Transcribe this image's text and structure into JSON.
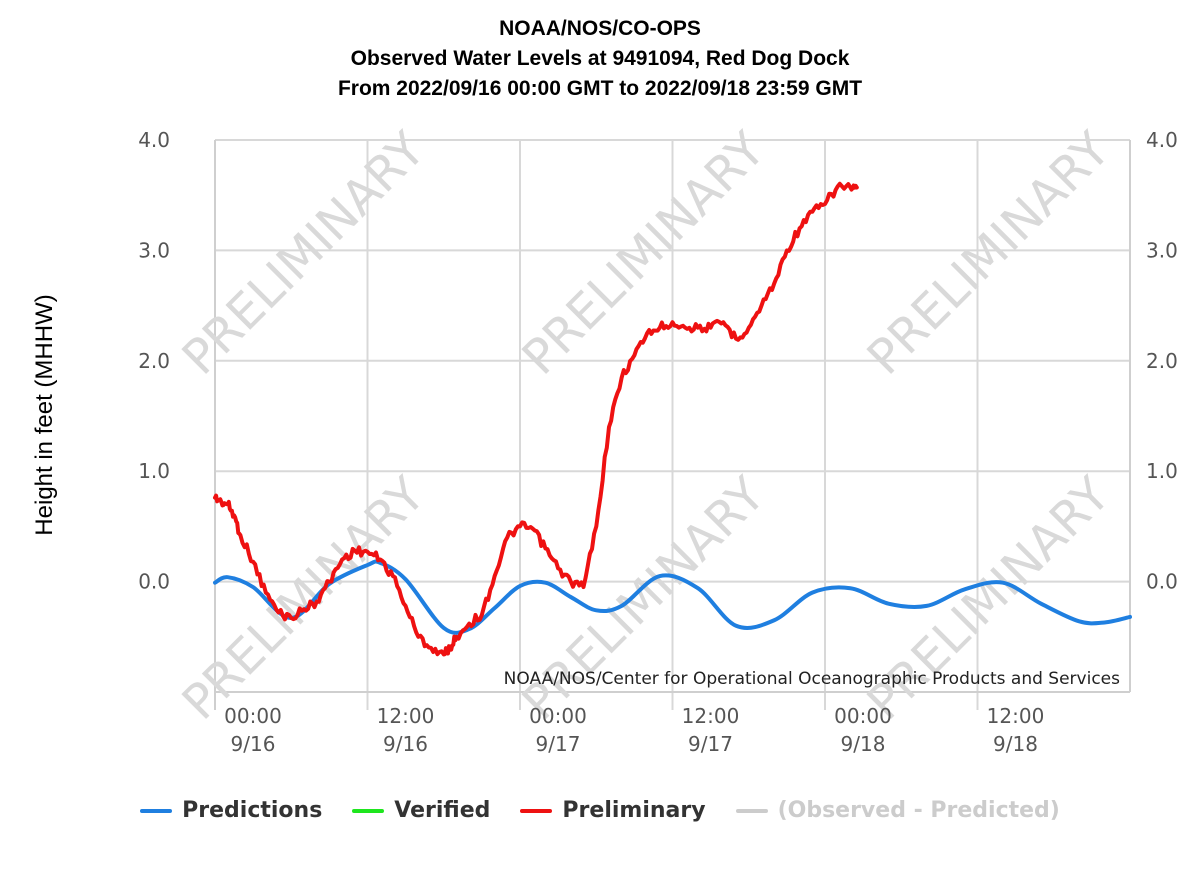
{
  "title_lines": [
    "NOAA/NOS/CO-OPS",
    "Observed Water Levels at 9491094, Red Dog Dock",
    "From 2022/09/16 00:00 GMT to 2022/09/18 23:59 GMT"
  ],
  "watermark": "PRELIMINARY",
  "credit": "NOAA/NOS/Center for Operational Oceanographic Products and Services",
  "chart_data": {
    "type": "line",
    "ylabel": "Height in feet (MHHW)",
    "xlabel": "",
    "xlim": [
      "2022-09-16 00:00",
      "2022-09-19 00:00"
    ],
    "ylim": [
      -1.0,
      4.0
    ],
    "y_ticks": [
      "4.0",
      "3.0",
      "2.0",
      "1.0",
      "0.0"
    ],
    "y_tick_values": [
      4.0,
      3.0,
      2.0,
      1.0,
      0.0
    ],
    "x_ticks": [
      {
        "time": "2022-09-16 00:00",
        "line1": "00:00",
        "line2": "9/16"
      },
      {
        "time": "2022-09-16 12:00",
        "line1": "12:00",
        "line2": "9/16"
      },
      {
        "time": "2022-09-17 00:00",
        "line1": "00:00",
        "line2": "9/17"
      },
      {
        "time": "2022-09-17 12:00",
        "line1": "12:00",
        "line2": "9/17"
      },
      {
        "time": "2022-09-18 00:00",
        "line1": "00:00",
        "line2": "9/18"
      },
      {
        "time": "2022-09-18 12:00",
        "line1": "12:00",
        "line2": "9/18"
      }
    ],
    "grid": true,
    "legend_position": "bottom-center",
    "series": [
      {
        "name": "Predictions",
        "color": "#1f7fe0",
        "x": [
          "2022-09-16 00:00",
          "2022-09-16 01:00",
          "2022-09-16 03:00",
          "2022-09-16 06:00",
          "2022-09-16 09:00",
          "2022-09-16 12:00",
          "2022-09-16 13:00",
          "2022-09-16 15:00",
          "2022-09-16 18:00",
          "2022-09-16 20:00",
          "2022-09-16 22:00",
          "2022-09-17 00:00",
          "2022-09-17 02:00",
          "2022-09-17 04:00",
          "2022-09-17 06:00",
          "2022-09-17 08:00",
          "2022-09-17 11:00",
          "2022-09-17 14:00",
          "2022-09-17 17:00",
          "2022-09-17 20:00",
          "2022-09-17 23:00",
          "2022-09-18 02:00",
          "2022-09-18 05:00",
          "2022-09-18 08:00",
          "2022-09-18 11:00",
          "2022-09-18 14:00",
          "2022-09-18 17:00",
          "2022-09-18 20:00",
          "2022-09-18 22:00",
          "2022-09-19 00:00"
        ],
        "y": [
          -0.01,
          0.04,
          -0.05,
          -0.33,
          -0.02,
          0.15,
          0.17,
          0.02,
          -0.42,
          -0.43,
          -0.24,
          -0.04,
          -0.01,
          -0.14,
          -0.26,
          -0.22,
          0.05,
          -0.06,
          -0.4,
          -0.35,
          -0.1,
          -0.06,
          -0.2,
          -0.22,
          -0.07,
          -0.01,
          -0.2,
          -0.36,
          -0.37,
          -0.32
        ]
      },
      {
        "name": "Verified",
        "color": "#1ee61e",
        "x": [],
        "y": []
      },
      {
        "name": "Preliminary",
        "color": "#ee1111",
        "x": [
          "2022-09-16 00:00",
          "2022-09-16 00:30",
          "2022-09-16 01:00",
          "2022-09-16 01:30",
          "2022-09-16 02:00",
          "2022-09-16 03:00",
          "2022-09-16 04:00",
          "2022-09-16 05:00",
          "2022-09-16 06:00",
          "2022-09-16 07:00",
          "2022-09-16 08:00",
          "2022-09-16 09:00",
          "2022-09-16 10:00",
          "2022-09-16 11:00",
          "2022-09-16 12:00",
          "2022-09-16 13:00",
          "2022-09-16 14:00",
          "2022-09-16 15:00",
          "2022-09-16 16:00",
          "2022-09-16 17:00",
          "2022-09-16 18:00",
          "2022-09-16 18:30",
          "2022-09-16 19:00",
          "2022-09-16 20:00",
          "2022-09-16 21:00",
          "2022-09-16 22:00",
          "2022-09-16 23:00",
          "2022-09-17 00:00",
          "2022-09-17 01:00",
          "2022-09-17 02:00",
          "2022-09-17 03:00",
          "2022-09-17 04:00",
          "2022-09-17 05:00",
          "2022-09-17 06:00",
          "2022-09-17 07:00",
          "2022-09-17 08:00",
          "2022-09-17 09:00",
          "2022-09-17 10:00",
          "2022-09-17 11:00",
          "2022-09-17 12:00",
          "2022-09-17 13:00",
          "2022-09-17 14:00",
          "2022-09-17 15:00",
          "2022-09-17 16:00",
          "2022-09-17 17:00",
          "2022-09-17 18:00",
          "2022-09-17 19:00",
          "2022-09-17 20:00",
          "2022-09-17 21:00",
          "2022-09-17 22:00",
          "2022-09-17 23:00",
          "2022-09-18 00:00",
          "2022-09-18 01:00",
          "2022-09-18 02:00",
          "2022-09-18 02:30"
        ],
        "y": [
          0.76,
          0.72,
          0.7,
          0.6,
          0.42,
          0.18,
          -0.1,
          -0.28,
          -0.33,
          -0.25,
          -0.18,
          0.0,
          0.2,
          0.28,
          0.27,
          0.2,
          0.05,
          -0.22,
          -0.5,
          -0.6,
          -0.66,
          -0.6,
          -0.5,
          -0.38,
          -0.3,
          0.05,
          0.4,
          0.5,
          0.48,
          0.3,
          0.12,
          0.0,
          -0.05,
          0.5,
          1.4,
          1.85,
          2.05,
          2.25,
          2.3,
          2.35,
          2.3,
          2.3,
          2.3,
          2.35,
          2.2,
          2.3,
          2.5,
          2.7,
          3.0,
          3.2,
          3.35,
          3.42,
          3.58,
          3.57,
          3.57
        ]
      },
      {
        "name": "(Observed - Predicted)",
        "color": "#cccccc",
        "x": [],
        "y": []
      }
    ]
  }
}
